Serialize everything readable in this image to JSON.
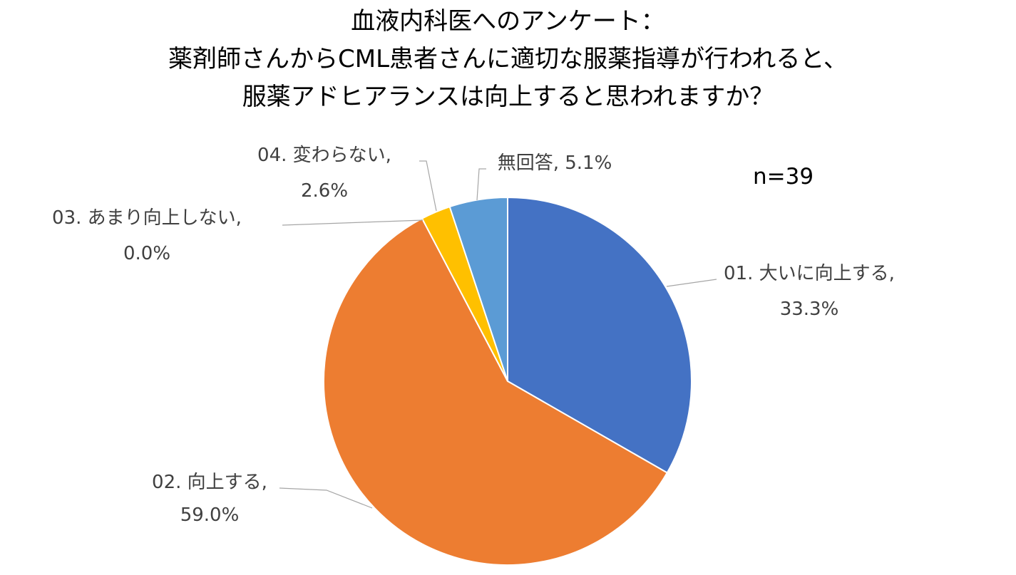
{
  "title": {
    "lines": [
      "血液内科医へのアンケート：",
      "薬剤師さんからCML患者さんに適切な服薬指導が行われると、",
      "服薬アドヒアランスは向上すると思われますか？"
    ]
  },
  "sample_size": "n=39",
  "chart_data": {
    "type": "pie",
    "title": "血液内科医へのアンケート：薬剤師さんからCML患者さんに適切な服薬指導が行われると、服薬アドヒアランスは向上すると思われますか？",
    "start_angle": "12 o'clock",
    "direction": "clockwise",
    "legend": "none",
    "slices": [
      {
        "category": "01. 大いに向上する",
        "value": 33.3,
        "value_label": "33.3%",
        "color": "#4472C4"
      },
      {
        "category": "02. 向上する",
        "value": 59.0,
        "value_label": "59.0%",
        "color": "#ED7D31"
      },
      {
        "category": "03. あまり向上しない",
        "value": 0.0,
        "value_label": "0.0%",
        "color": "#A5A5A5"
      },
      {
        "category": "04. 変わらない",
        "value": 2.6,
        "value_label": "2.6%",
        "color": "#FFC000"
      },
      {
        "category": "無回答",
        "value": 5.1,
        "value_label": "5.1%",
        "color": "#5B9BD5"
      }
    ]
  }
}
